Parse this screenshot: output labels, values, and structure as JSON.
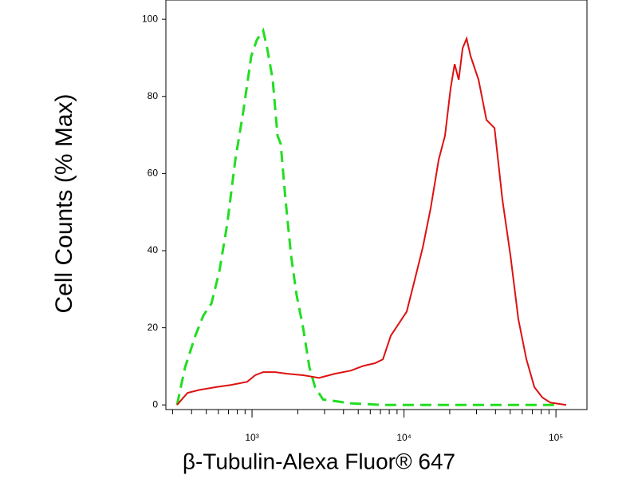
{
  "chart_data": {
    "type": "line",
    "x_label": "β-Tubulin-Alexa Fluor® 647",
    "y_label": "Cell Counts (% Max)",
    "xscale": "log",
    "xlim": [
      271,
      160000
    ],
    "ylim": [
      -1.2,
      105
    ],
    "xticks": [
      {
        "value": 1000,
        "label": "10³"
      },
      {
        "value": 10000,
        "label": "10⁴"
      },
      {
        "value": 100000,
        "label": "10⁵"
      }
    ],
    "xminorticks": [
      300,
      400,
      500,
      600,
      700,
      800,
      900,
      2000,
      3000,
      4000,
      5000,
      6000,
      7000,
      8000,
      9000,
      20000,
      30000,
      40000,
      50000,
      60000,
      70000,
      80000,
      90000
    ],
    "yticks": [
      0,
      20,
      40,
      60,
      80,
      100
    ],
    "series": [
      {
        "color": "#22dd22",
        "linestyle": "dashed",
        "x": [
          321,
          362,
          424,
          479,
          540,
          609,
          687,
          776,
          875,
          989,
          1075,
          1184,
          1258,
          1369,
          1472,
          1545,
          1661,
          1808,
          1967,
          2167,
          2387,
          2600,
          2932,
          3513,
          4476,
          7262,
          11780,
          30960,
          103800
        ],
        "values": [
          0,
          9.7,
          18,
          23.2,
          26.3,
          34.6,
          47,
          63.6,
          76,
          90.5,
          94.6,
          97.1,
          92.5,
          84.3,
          69.8,
          67.7,
          53.2,
          38.7,
          28.4,
          20.1,
          9.7,
          4.6,
          1.4,
          1,
          0.4,
          0,
          0,
          0,
          0
        ]
      },
      {
        "color": "#dd1111",
        "linestyle": "solid",
        "x": [
          321,
          376,
          451,
          574,
          731,
          930,
          1049,
          1184,
          1420,
          1702,
          2167,
          2761,
          3513,
          4476,
          5370,
          6430,
          7262,
          8190,
          9250,
          10420,
          11780,
          13290,
          15000,
          16920,
          18620,
          20280,
          21540,
          22910,
          24320,
          25840,
          27420,
          30960,
          34920,
          39450,
          44460,
          50230,
          56620,
          63970,
          72140,
          81470,
          91830,
          116900
        ],
        "values": [
          0,
          3.1,
          3.9,
          4.6,
          5.2,
          6,
          7.7,
          8.5,
          8.5,
          8.1,
          7.7,
          7,
          8.1,
          8.9,
          10.1,
          10.8,
          11.8,
          18,
          21.1,
          24.2,
          32.5,
          40.8,
          51.1,
          63.6,
          69.8,
          82.2,
          88.4,
          84.3,
          92.5,
          95,
          90.5,
          84.3,
          73.9,
          71.8,
          53.2,
          38.7,
          22.2,
          11.8,
          4.6,
          1.9,
          0.6,
          0
        ]
      }
    ]
  }
}
